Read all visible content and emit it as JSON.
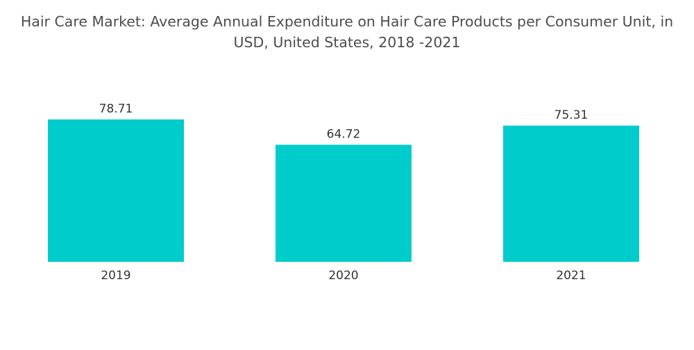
{
  "chart_data": {
    "type": "bar",
    "title_line1": "Hair Care Market: Average Annual Expenditure on Hair Care Products per Consumer Unit, in",
    "title_line2": "USD, United States, 2018 -2021",
    "categories": [
      "2019",
      "2020",
      "2021"
    ],
    "values": [
      78.71,
      64.72,
      75.31
    ],
    "value_labels": [
      "78.71",
      "64.72",
      "75.31"
    ],
    "xlabel": "",
    "ylabel": "",
    "ylim": [
      0,
      78.71
    ],
    "grid": false,
    "legend": "none",
    "bar_color": "#00cccc"
  }
}
